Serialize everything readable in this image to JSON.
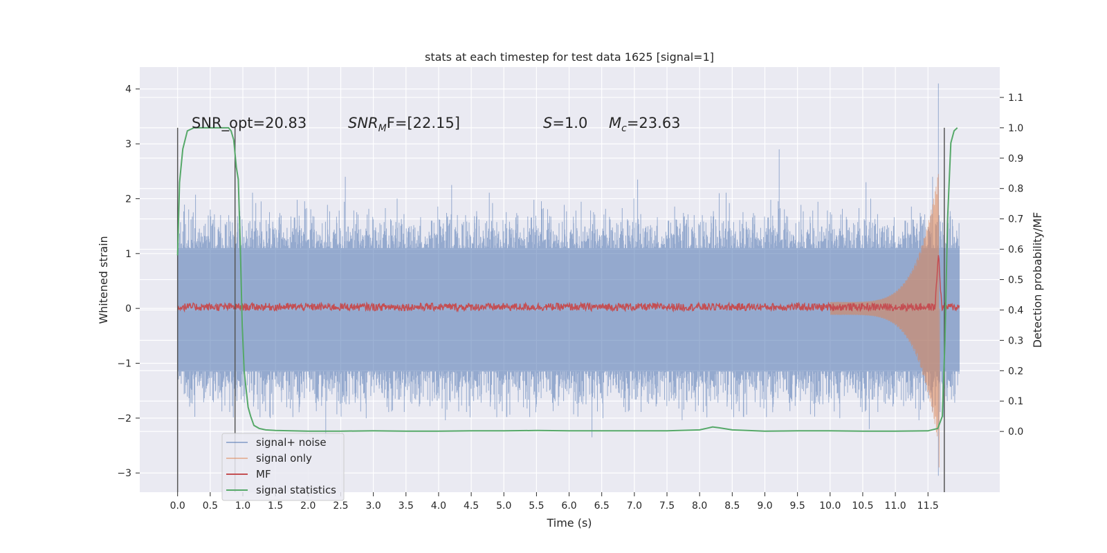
{
  "chart_data": {
    "type": "line",
    "title": "stats at each timestep for test data 1625 [signal=1]",
    "xlabel": "Time (s)",
    "ylabel": "Whitened strain",
    "y2label": "Detection probability/MF",
    "xlim": [
      -0.58,
      12.6
    ],
    "ylim": [
      -3.35,
      4.4
    ],
    "y2lim": [
      -0.2,
      1.2
    ],
    "xticks": [
      0.0,
      0.5,
      1.0,
      1.5,
      2.0,
      2.5,
      3.0,
      3.5,
      4.0,
      4.5,
      5.0,
      5.5,
      6.0,
      6.5,
      7.0,
      7.5,
      8.0,
      8.5,
      9.0,
      9.5,
      10.0,
      10.5,
      11.0,
      11.5
    ],
    "xtick_labels": [
      "0.0",
      "0.5",
      "1.0",
      "1.5",
      "2.0",
      "2.5",
      "3.0",
      "3.5",
      "4.0",
      "4.5",
      "5.0",
      "5.5",
      "6.0",
      "6.5",
      "7.0",
      "7.5",
      "8.0",
      "8.5",
      "9.0",
      "9.5",
      "10.0",
      "10.5",
      "11.0",
      "11.5"
    ],
    "yticks": [
      -3,
      -2,
      -1,
      0,
      1,
      2,
      3,
      4
    ],
    "ytick_labels": [
      "−3",
      "−2",
      "−1",
      "0",
      "1",
      "2",
      "3",
      "4"
    ],
    "y2ticks": [
      0.0,
      0.1,
      0.2,
      0.3,
      0.4,
      0.5,
      0.6,
      0.7,
      0.8,
      0.9,
      1.0,
      1.1
    ],
    "y2tick_labels": [
      "0.0",
      "0.1",
      "0.2",
      "0.3",
      "0.4",
      "0.5",
      "0.6",
      "0.7",
      "0.8",
      "0.9",
      "1.0",
      "1.1"
    ],
    "grid": true,
    "legend_position": "lower-left",
    "annotations": {
      "snr_opt": "SNR_opt=20.83",
      "snr_mf_main": "SNR",
      "snr_mf_sub": "M",
      "snr_mf_rest": "F=[22.15]",
      "s_italic": "S",
      "s_value": "=1.0",
      "mc_italic": "M",
      "mc_sub": "c",
      "mc_value": "=23.63"
    },
    "vlines": [
      {
        "x": 0.0,
        "y2": [
          -0.2,
          1.0
        ]
      },
      {
        "x": 0.88,
        "y2": [
          -0.2,
          1.0
        ]
      },
      {
        "x": 11.75,
        "y2": [
          -0.2,
          1.0
        ]
      }
    ],
    "series": [
      {
        "name": "signal+ noise",
        "color": "#4c72b0",
        "axis": "left",
        "t_range": [
          0.0,
          11.98
        ],
        "envelope_upper": 1.1,
        "envelope_lower": -1.15,
        "peaks": [
          {
            "x": 0.5,
            "y": 1.8
          },
          {
            "x": 1.28,
            "y": 1.95
          },
          {
            "x": 1.42,
            "y": -2.0
          },
          {
            "x": 2.27,
            "y": -2.35
          },
          {
            "x": 2.57,
            "y": 2.4
          },
          {
            "x": 4.2,
            "y": 2.25
          },
          {
            "x": 6.35,
            "y": -2.35
          },
          {
            "x": 7.05,
            "y": 2.35
          },
          {
            "x": 8.3,
            "y": 2.1
          },
          {
            "x": 9.22,
            "y": 2.9
          },
          {
            "x": 10.55,
            "y": 2.3
          },
          {
            "x": 10.6,
            "y": -2.2
          },
          {
            "x": 11.57,
            "y": 2.4
          },
          {
            "x": 11.66,
            "y": 4.1
          },
          {
            "x": 11.66,
            "y": -3.05
          }
        ]
      },
      {
        "name": "signal only",
        "color": "#dd8452",
        "axis": "left",
        "chirp_start": 10.0,
        "chirp_end": 11.66,
        "peak_amplitude": 2.5
      },
      {
        "name": "MF",
        "color": "#c44e52",
        "axis": "right",
        "baseline": 0.41,
        "peak": {
          "x": 11.66,
          "y": 0.59
        }
      },
      {
        "name": "signal statistics",
        "color": "#55a868",
        "axis": "right",
        "x": [
          0.0,
          0.03,
          0.08,
          0.15,
          0.25,
          0.4,
          0.6,
          0.78,
          0.82,
          0.86,
          0.9,
          0.93,
          0.96,
          0.99,
          1.02,
          1.05,
          1.08,
          1.12,
          1.17,
          1.25,
          1.35,
          1.5,
          2.0,
          2.5,
          3.0,
          3.5,
          4.0,
          4.5,
          5.0,
          5.5,
          6.0,
          6.5,
          7.0,
          7.5,
          8.0,
          8.1,
          8.2,
          8.3,
          8.5,
          9.0,
          9.5,
          10.0,
          10.5,
          11.0,
          11.5,
          11.65,
          11.72,
          11.76,
          11.8,
          11.85,
          11.9,
          11.95
        ],
        "y": [
          0.58,
          0.82,
          0.93,
          0.99,
          1.0,
          1.0,
          1.0,
          1.0,
          0.99,
          0.96,
          0.87,
          0.83,
          0.62,
          0.35,
          0.2,
          0.14,
          0.08,
          0.05,
          0.02,
          0.01,
          0.005,
          0.003,
          0.001,
          0.001,
          0.002,
          0.001,
          0.001,
          0.002,
          0.002,
          0.003,
          0.002,
          0.002,
          0.002,
          0.002,
          0.005,
          0.01,
          0.015,
          0.012,
          0.005,
          0.001,
          0.002,
          0.002,
          0.001,
          0.001,
          0.002,
          0.01,
          0.05,
          0.3,
          0.7,
          0.95,
          0.99,
          1.0
        ]
      }
    ]
  }
}
